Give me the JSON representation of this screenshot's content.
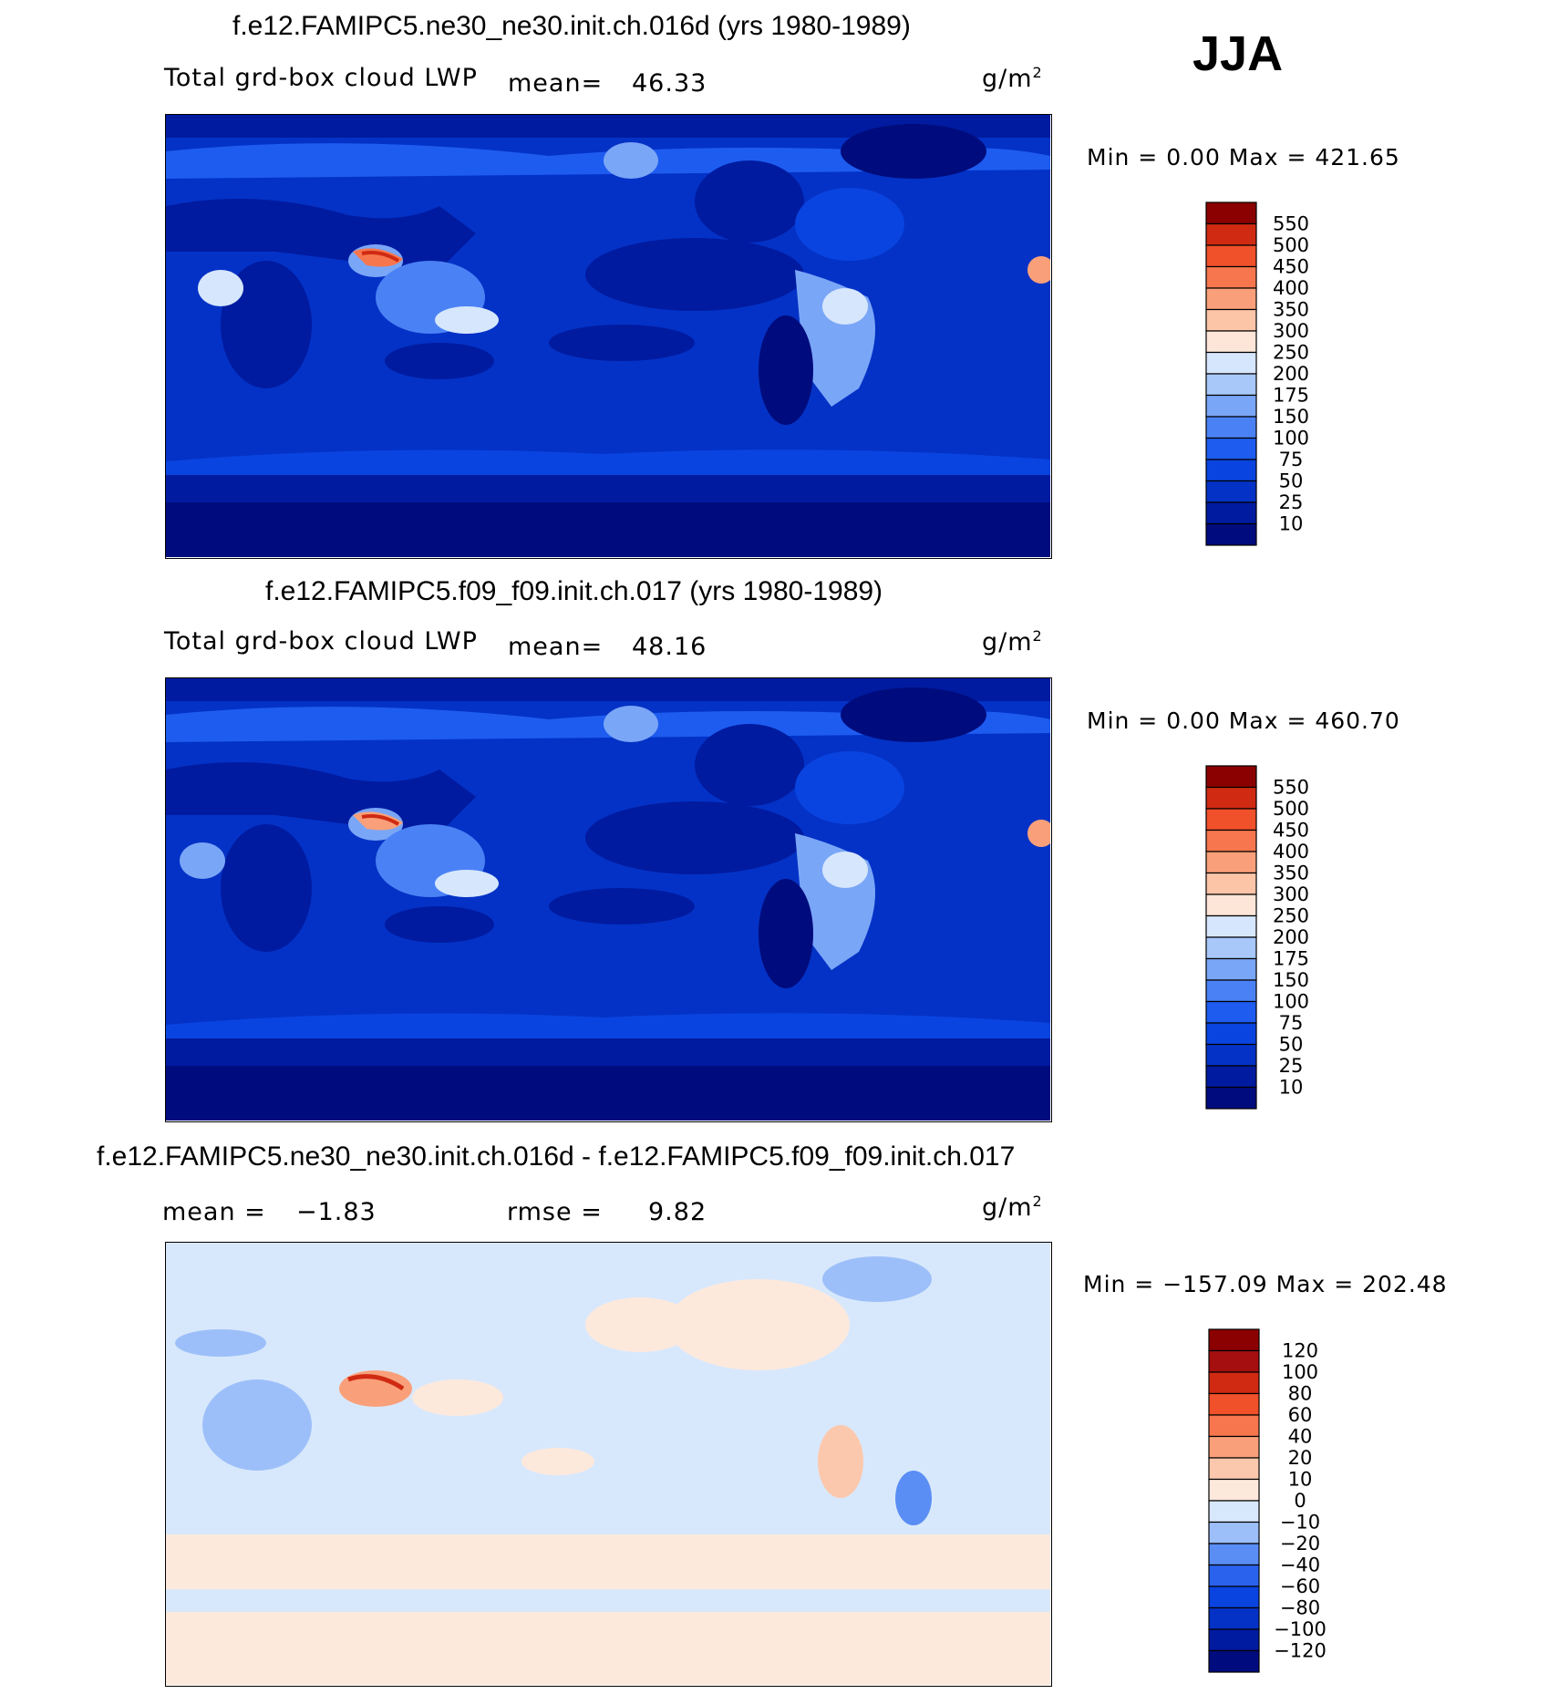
{
  "season": "JJA",
  "units": "g/m",
  "units_exp": "2",
  "panels": [
    {
      "title": "f.e12.FAMIPC5.ne30_ne30.init.ch.016d (yrs 1980-1989)",
      "variable": "Total grd-box cloud LWP",
      "mean_label": "mean=",
      "mean_value": "46.33",
      "minmax": "Min =    0.00 Max = 421.65"
    },
    {
      "title": "f.e12.FAMIPC5.f09_f09.init.ch.017 (yrs 1980-1989)",
      "variable": "Total grd-box cloud LWP",
      "mean_label": "mean=",
      "mean_value": "48.16",
      "minmax": "Min =    0.00 Max = 460.70"
    },
    {
      "title": "f.e12.FAMIPC5.ne30_ne30.init.ch.016d - f.e12.FAMIPC5.f09_f09.init.ch.017",
      "mean_label": "mean =",
      "mean_value": "−1.83",
      "rmse_label": "rmse =",
      "rmse_value": "9.82",
      "minmax": "Min = −157.09 Max = 202.48"
    }
  ],
  "chart_data": [
    {
      "type": "heatmap",
      "title": "f.e12.FAMIPC5.ne30_ne30.init.ch.016d (yrs 1980-1989)",
      "subtitle": "Total grd-box cloud LWP",
      "units": "g/m2",
      "mean": 46.33,
      "min": 0.0,
      "max": 421.65,
      "colorbar_levels": [
        10,
        25,
        50,
        75,
        100,
        150,
        175,
        200,
        250,
        300,
        350,
        400,
        450,
        500,
        550
      ],
      "colorbar_labels": [
        "550",
        "500",
        "450",
        "400",
        "350",
        "300",
        "250",
        "200",
        "175",
        "150",
        "100",
        "75",
        "50",
        "25",
        "10"
      ],
      "colors": [
        "#000c7d",
        "#001ba0",
        "#0432c6",
        "#0a44e0",
        "#1e5cf0",
        "#4a82f5",
        "#7aa6f7",
        "#a8c8fa",
        "#d6e6fd",
        "#fde6d8",
        "#fcc5a8",
        "#f9a07a",
        "#f7764d",
        "#f0502a",
        "#d02a12",
        "#8b0000"
      ]
    },
    {
      "type": "heatmap",
      "title": "f.e12.FAMIPC5.f09_f09.init.ch.017 (yrs 1980-1989)",
      "subtitle": "Total grd-box cloud LWP",
      "units": "g/m2",
      "mean": 48.16,
      "min": 0.0,
      "max": 460.7,
      "colorbar_levels": [
        10,
        25,
        50,
        75,
        100,
        150,
        175,
        200,
        250,
        300,
        350,
        400,
        450,
        500,
        550
      ],
      "colorbar_labels": [
        "550",
        "500",
        "450",
        "400",
        "350",
        "300",
        "250",
        "200",
        "175",
        "150",
        "100",
        "75",
        "50",
        "25",
        "10"
      ],
      "colors": [
        "#000c7d",
        "#001ba0",
        "#0432c6",
        "#0a44e0",
        "#1e5cf0",
        "#4a82f5",
        "#7aa6f7",
        "#a8c8fa",
        "#d6e6fd",
        "#fde6d8",
        "#fcc5a8",
        "#f9a07a",
        "#f7764d",
        "#f0502a",
        "#d02a12",
        "#8b0000"
      ]
    },
    {
      "type": "heatmap",
      "title": "f.e12.FAMIPC5.ne30_ne30.init.ch.016d - f.e12.FAMIPC5.f09_f09.init.ch.017",
      "units": "g/m2",
      "mean": -1.83,
      "rmse": 9.82,
      "min": -157.09,
      "max": 202.48,
      "colorbar_levels": [
        -120,
        -100,
        -80,
        -60,
        -40,
        -20,
        -10,
        0,
        10,
        20,
        40,
        60,
        80,
        100,
        120
      ],
      "colorbar_labels": [
        "120",
        "100",
        "80",
        "60",
        "40",
        "20",
        "10",
        "0",
        "−10",
        "−20",
        "−40",
        "−60",
        "−80",
        "−100",
        "−120"
      ],
      "colors": [
        "#000c7d",
        "#001ba0",
        "#0432c6",
        "#0a44e0",
        "#2a62ee",
        "#5a8ef4",
        "#9dbff9",
        "#d8e8fc",
        "#fde9dc",
        "#fcc8ad",
        "#f9a07a",
        "#f7764d",
        "#f0502a",
        "#d02a12",
        "#a50f0f",
        "#8b0000"
      ]
    }
  ]
}
